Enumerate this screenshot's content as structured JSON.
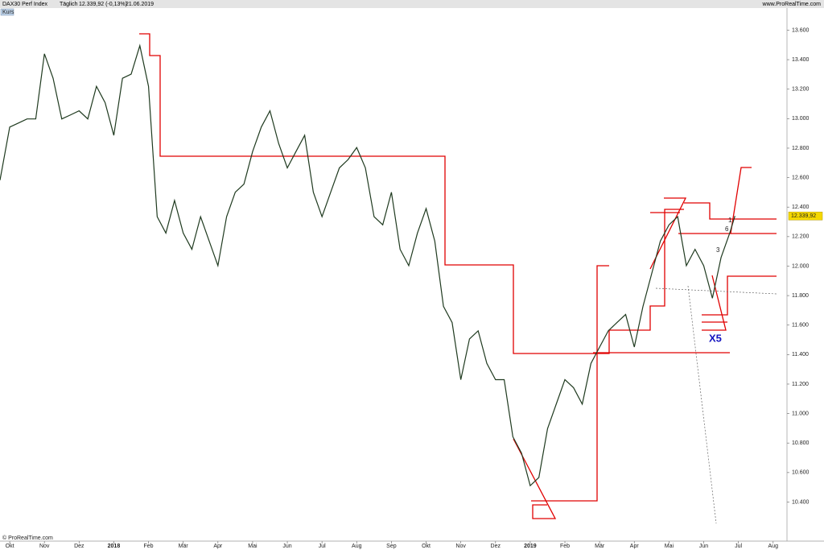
{
  "header": {
    "instrument": "DAX30 Perf Index",
    "period": "Täglich",
    "quote": "12.339,92 (-0,13%)",
    "date": "21.06.2019",
    "site": "www.ProRealTime.com",
    "panel": "Kurs",
    "copyright": "© ProRealTime.com"
  },
  "chart_data": {
    "type": "line",
    "x": [
      -0.28,
      0,
      0.25,
      0.5,
      0.75,
      1,
      1.25,
      1.5,
      1.75,
      2,
      2.25,
      2.5,
      2.75,
      3,
      3.25,
      3.5,
      3.75,
      4,
      4.25,
      4.5,
      4.75,
      5,
      5.25,
      5.5,
      5.75,
      6,
      6.25,
      6.5,
      6.75,
      7,
      7.25,
      7.5,
      7.75,
      8,
      8.25,
      8.5,
      8.75,
      9,
      9.25,
      9.5,
      9.75,
      10,
      10.25,
      10.5,
      10.75,
      11,
      11.25,
      11.5,
      11.75,
      12,
      12.25,
      12.5,
      12.75,
      13,
      13.25,
      13.5,
      13.75,
      14,
      14.25,
      14.5,
      14.75,
      15,
      15.25,
      15.5,
      15.75,
      16,
      16.25,
      16.5,
      16.75,
      17,
      17.25,
      17.5,
      17.75,
      18,
      18.25,
      18.5,
      18.75,
      19,
      19.25,
      19.5,
      19.75,
      20,
      20.25,
      20.5,
      20.75,
      20.9
    ],
    "series": [
      {
        "name": "DAX30 Perf Index",
        "color": "#1f3a1f",
        "values": [
          12583,
          12943,
          12970,
          12998,
          12998,
          13440,
          13274,
          12998,
          13025,
          13053,
          12998,
          13219,
          13108,
          12887,
          13274,
          13302,
          13495,
          13219,
          12335,
          12224,
          12445,
          12224,
          12114,
          12335,
          12169,
          12003,
          12335,
          12501,
          12556,
          12777,
          12943,
          13053,
          12832,
          12666,
          12777,
          12887,
          12501,
          12335,
          12501,
          12666,
          12722,
          12804,
          12666,
          12335,
          12280,
          12501,
          12114,
          12003,
          12224,
          12390,
          12169,
          11727,
          11617,
          11230,
          11506,
          11561,
          11340,
          11230,
          11230,
          10843,
          10732,
          10511,
          10567,
          10898,
          11064,
          11230,
          11175,
          11064,
          11340,
          11451,
          11561,
          11617,
          11672,
          11451,
          11727,
          11948,
          12169,
          12280,
          12335,
          12003,
          12114,
          12003,
          11782,
          12058,
          12224,
          12339.92
        ]
      }
    ],
    "price_tag": {
      "value": 12339.92,
      "label": "12.339,92"
    },
    "annotations": [
      "X5",
      "3",
      "6",
      "1"
    ],
    "xlim": [
      -0.28,
      22.4
    ],
    "xticks": [
      {
        "value": 0,
        "label": "Okt"
      },
      {
        "value": 1,
        "label": "Nov"
      },
      {
        "value": 2,
        "label": "Dez"
      },
      {
        "value": 3,
        "label": "2018"
      },
      {
        "value": 4,
        "label": "Feb"
      },
      {
        "value": 5,
        "label": "Mär"
      },
      {
        "value": 6,
        "label": "Apr"
      },
      {
        "value": 7,
        "label": "Mai"
      },
      {
        "value": 8,
        "label": "Jun"
      },
      {
        "value": 9,
        "label": "Jul"
      },
      {
        "value": 10,
        "label": "Aug"
      },
      {
        "value": 11,
        "label": "Sep"
      },
      {
        "value": 12,
        "label": "Okt"
      },
      {
        "value": 13,
        "label": "Nov"
      },
      {
        "value": 14,
        "label": "Dez"
      },
      {
        "value": 15,
        "label": "2019"
      },
      {
        "value": 16,
        "label": "Feb"
      },
      {
        "value": 17,
        "label": "Mär"
      },
      {
        "value": 18,
        "label": "Apr"
      },
      {
        "value": 19,
        "label": "Mai"
      },
      {
        "value": 20,
        "label": "Jun"
      },
      {
        "value": 21,
        "label": "Jul"
      },
      {
        "value": 22,
        "label": "Aug"
      }
    ],
    "ylim": [
      10135,
      13750
    ],
    "yticks": [
      {
        "value": 10400,
        "label": "10.400"
      },
      {
        "value": 10600,
        "label": "10.600"
      },
      {
        "value": 10800,
        "label": "10.800"
      },
      {
        "value": 11000,
        "label": "11.000"
      },
      {
        "value": 11200,
        "label": "11.200"
      },
      {
        "value": 11400,
        "label": "11.400"
      },
      {
        "value": 11600,
        "label": "11.600"
      },
      {
        "value": 11800,
        "label": "11.800"
      },
      {
        "value": 12000,
        "label": "12.000"
      },
      {
        "value": 12200,
        "label": "12.200"
      },
      {
        "value": 12400,
        "label": "12.400"
      },
      {
        "value": 12600,
        "label": "12.600"
      },
      {
        "value": 12800,
        "label": "12.800"
      },
      {
        "value": 13000,
        "label": "13.000"
      },
      {
        "value": 13200,
        "label": "13.200"
      },
      {
        "value": 13400,
        "label": "13.400"
      },
      {
        "value": 13600,
        "label": "13.600"
      }
    ]
  }
}
